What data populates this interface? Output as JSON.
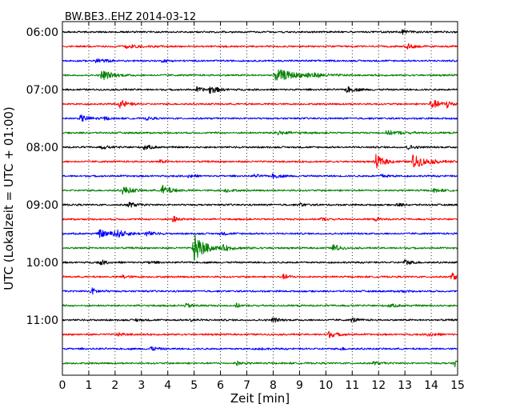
{
  "chart_data": {
    "type": "line",
    "title": "BW.BE3..EHZ 2014-03-12",
    "xlabel": "Zeit  [min]",
    "ylabel": "UTC (Lokalzeit = UTC + 01:00)",
    "xlim": [
      0,
      15
    ],
    "x_ticks": [
      "0",
      "1",
      "2",
      "3",
      "4",
      "5",
      "6",
      "7",
      "8",
      "9",
      "10",
      "11",
      "12",
      "13",
      "14",
      "15"
    ],
    "y_ticks": [
      "06:00",
      "07:00",
      "08:00",
      "09:00",
      "10:00",
      "11:00"
    ],
    "grid": "vertical dotted",
    "trace_minutes": 15,
    "trace_colors": [
      "#000000",
      "#ff0000",
      "#0000ff",
      "#008000"
    ],
    "series": [
      {
        "start": "06:00",
        "color": "#000000",
        "events": [
          {
            "x": 12.9,
            "amp": 0.3,
            "dur": 0.4
          }
        ]
      },
      {
        "start": "06:15",
        "color": "#ff0000",
        "events": [
          {
            "x": 2.3,
            "amp": 0.3,
            "dur": 0.8
          },
          {
            "x": 13.1,
            "amp": 0.35,
            "dur": 0.4
          }
        ]
      },
      {
        "start": "06:30",
        "color": "#0000ff",
        "events": [
          {
            "x": 1.3,
            "amp": 0.3,
            "dur": 0.5
          },
          {
            "x": 3.8,
            "amp": 0.15,
            "dur": 0.4
          }
        ]
      },
      {
        "start": "06:45",
        "color": "#008000",
        "events": [
          {
            "x": 1.5,
            "amp": 0.7,
            "dur": 0.6
          },
          {
            "x": 8.1,
            "amp": 0.8,
            "dur": 1.2
          },
          {
            "x": 9.3,
            "amp": 0.25,
            "dur": 0.8
          }
        ]
      },
      {
        "start": "07:00",
        "color": "#000000",
        "events": [
          {
            "x": 5.1,
            "amp": 0.3,
            "dur": 0.4
          },
          {
            "x": 5.6,
            "amp": 0.5,
            "dur": 0.5
          },
          {
            "x": 10.8,
            "amp": 0.4,
            "dur": 0.5
          }
        ]
      },
      {
        "start": "07:15",
        "color": "#ff0000",
        "events": [
          {
            "x": 2.2,
            "amp": 0.6,
            "dur": 0.4
          },
          {
            "x": 14.0,
            "amp": 0.6,
            "dur": 0.6
          },
          {
            "x": 14.6,
            "amp": 0.5,
            "dur": 0.3
          }
        ]
      },
      {
        "start": "07:30",
        "color": "#0000ff",
        "events": [
          {
            "x": 0.7,
            "amp": 0.45,
            "dur": 0.5
          },
          {
            "x": 1.6,
            "amp": 0.2,
            "dur": 0.3
          },
          {
            "x": 3.2,
            "amp": 0.2,
            "dur": 0.3
          }
        ]
      },
      {
        "start": "07:45",
        "color": "#008000",
        "events": [
          {
            "x": 8.1,
            "amp": 0.25,
            "dur": 0.8
          },
          {
            "x": 12.3,
            "amp": 0.25,
            "dur": 1.0
          }
        ]
      },
      {
        "start": "08:00",
        "color": "#000000",
        "events": [
          {
            "x": 1.5,
            "amp": 0.2,
            "dur": 0.5
          },
          {
            "x": 3.1,
            "amp": 0.35,
            "dur": 0.4
          },
          {
            "x": 13.1,
            "amp": 0.3,
            "dur": 0.4
          }
        ]
      },
      {
        "start": "08:15",
        "color": "#ff0000",
        "events": [
          {
            "x": 3.7,
            "amp": 0.2,
            "dur": 0.3
          },
          {
            "x": 11.9,
            "amp": 0.9,
            "dur": 0.5
          },
          {
            "x": 13.3,
            "amp": 0.9,
            "dur": 0.8
          }
        ]
      },
      {
        "start": "08:30",
        "color": "#0000ff",
        "events": [
          {
            "x": 4.8,
            "amp": 0.25,
            "dur": 0.3
          },
          {
            "x": 7.3,
            "amp": 0.2,
            "dur": 0.3
          },
          {
            "x": 8.0,
            "amp": 0.3,
            "dur": 0.4
          },
          {
            "x": 12.1,
            "amp": 0.2,
            "dur": 0.5
          }
        ]
      },
      {
        "start": "08:45",
        "color": "#008000",
        "events": [
          {
            "x": 2.3,
            "amp": 0.6,
            "dur": 0.5
          },
          {
            "x": 3.8,
            "amp": 0.7,
            "dur": 0.5
          },
          {
            "x": 6.2,
            "amp": 0.2,
            "dur": 0.4
          },
          {
            "x": 14.1,
            "amp": 0.2,
            "dur": 0.5
          }
        ]
      },
      {
        "start": "09:00",
        "color": "#000000",
        "events": [
          {
            "x": 2.5,
            "amp": 0.4,
            "dur": 0.4
          },
          {
            "x": 9.0,
            "amp": 0.25,
            "dur": 0.3
          },
          {
            "x": 12.7,
            "amp": 0.2,
            "dur": 0.4
          }
        ]
      },
      {
        "start": "09:15",
        "color": "#ff0000",
        "events": [
          {
            "x": 4.2,
            "amp": 0.45,
            "dur": 0.3
          },
          {
            "x": 9.8,
            "amp": 0.2,
            "dur": 0.3
          },
          {
            "x": 11.9,
            "amp": 0.2,
            "dur": 0.3
          }
        ]
      },
      {
        "start": "09:30",
        "color": "#0000ff",
        "events": [
          {
            "x": 1.4,
            "amp": 0.5,
            "dur": 0.7
          },
          {
            "x": 2.0,
            "amp": 0.5,
            "dur": 0.6
          },
          {
            "x": 3.2,
            "amp": 0.3,
            "dur": 0.4
          },
          {
            "x": 6.0,
            "amp": 0.15,
            "dur": 0.5
          }
        ]
      },
      {
        "start": "09:45",
        "color": "#008000",
        "events": [
          {
            "x": 5.0,
            "amp": 2.0,
            "dur": 0.6
          },
          {
            "x": 6.1,
            "amp": 0.25,
            "dur": 0.8
          },
          {
            "x": 10.3,
            "amp": 0.6,
            "dur": 0.3
          }
        ]
      },
      {
        "start": "10:00",
        "color": "#000000",
        "events": [
          {
            "x": 1.4,
            "amp": 0.35,
            "dur": 0.4
          },
          {
            "x": 3.3,
            "amp": 0.2,
            "dur": 0.3
          },
          {
            "x": 13.0,
            "amp": 0.35,
            "dur": 0.4
          }
        ]
      },
      {
        "start": "10:15",
        "color": "#ff0000",
        "events": [
          {
            "x": 2.3,
            "amp": 0.25,
            "dur": 0.3
          },
          {
            "x": 8.4,
            "amp": 0.3,
            "dur": 0.4
          },
          {
            "x": 14.8,
            "amp": 0.5,
            "dur": 0.3
          }
        ]
      },
      {
        "start": "10:30",
        "color": "#0000ff",
        "events": [
          {
            "x": 1.1,
            "amp": 0.45,
            "dur": 0.4
          },
          {
            "x": 12.8,
            "amp": 0.12,
            "dur": 0.4
          }
        ]
      },
      {
        "start": "10:45",
        "color": "#008000",
        "events": [
          {
            "x": 4.7,
            "amp": 0.25,
            "dur": 0.5
          },
          {
            "x": 6.6,
            "amp": 0.3,
            "dur": 0.2
          },
          {
            "x": 12.4,
            "amp": 0.2,
            "dur": 0.5
          }
        ]
      },
      {
        "start": "11:00",
        "color": "#000000",
        "events": [
          {
            "x": 2.8,
            "amp": 0.2,
            "dur": 0.3
          },
          {
            "x": 4.9,
            "amp": 0.2,
            "dur": 0.3
          },
          {
            "x": 8.0,
            "amp": 0.35,
            "dur": 0.3
          },
          {
            "x": 11.0,
            "amp": 0.3,
            "dur": 0.3
          }
        ]
      },
      {
        "start": "11:15",
        "color": "#ff0000",
        "events": [
          {
            "x": 2.1,
            "amp": 0.2,
            "dur": 0.4
          },
          {
            "x": 10.1,
            "amp": 0.4,
            "dur": 0.5
          },
          {
            "x": 13.9,
            "amp": 0.3,
            "dur": 0.4
          }
        ]
      },
      {
        "start": "11:30",
        "color": "#0000ff",
        "events": [
          {
            "x": 3.3,
            "amp": 0.35,
            "dur": 0.4
          },
          {
            "x": 7.5,
            "amp": 0.15,
            "dur": 0.3
          },
          {
            "x": 10.6,
            "amp": 0.15,
            "dur": 0.3
          }
        ]
      },
      {
        "start": "11:45",
        "color": "#008000",
        "events": [
          {
            "x": 6.6,
            "amp": 0.3,
            "dur": 0.3
          },
          {
            "x": 11.8,
            "amp": 0.2,
            "dur": 0.4
          },
          {
            "x": 14.9,
            "amp": 0.4,
            "dur": 0.3
          }
        ]
      }
    ]
  }
}
